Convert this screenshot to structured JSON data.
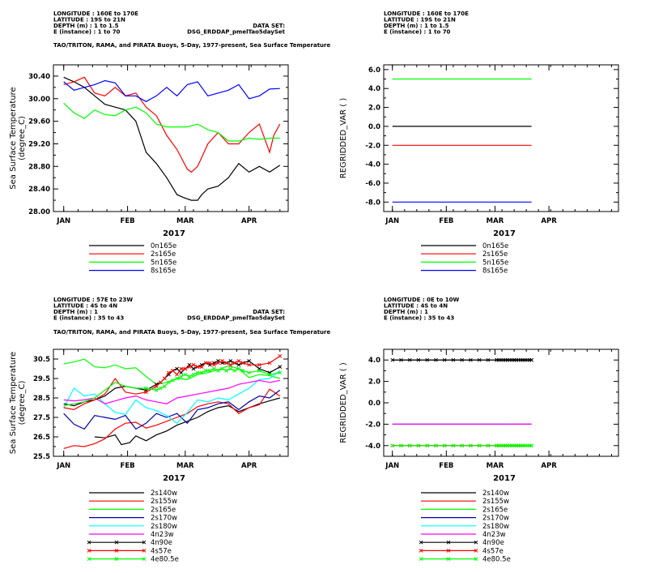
{
  "chart_data": [
    {
      "type": "line",
      "header": [
        "LONGITUDE : 160E to 170E",
        "LATITUDE : 19S to 21N",
        "DEPTH (m) : 1 to 1.5",
        "E (instance) : 1 to 70"
      ],
      "dataset_label": "DATA SET:",
      "dataset_name": "DSG_ERDDAP_pmelTao5daySet",
      "title": "TAO/TRITON, RAMA, and PIRATA Buoys, 5-Day, 1977-present, Sea Surface Temperature",
      "ylabel": "Sea Surface Temperature",
      "yunit": "(degree_C)",
      "xlabel": "2017",
      "x_ticks": [
        "JAN",
        "FEB",
        "MAR",
        "APR"
      ],
      "xlim": [
        -5,
        109
      ],
      "ylim": [
        28.0,
        30.6
      ],
      "y_ticks": [
        28.0,
        28.4,
        28.8,
        29.2,
        29.6,
        30.0,
        30.4
      ],
      "y_tick_labels": [
        "28.00",
        "28.40",
        "28.80",
        "29.20",
        "29.60",
        "30.00",
        "30.40"
      ],
      "series": [
        {
          "name": "0n165e",
          "color": "#000000",
          "x": [
            0,
            5,
            10,
            15,
            20,
            25,
            30,
            35,
            40,
            45,
            50,
            55,
            58,
            62,
            65,
            67,
            70,
            75,
            80,
            85,
            90,
            95,
            100,
            105
          ],
          "y": [
            30.38,
            30.3,
            30.2,
            30.05,
            29.9,
            29.85,
            29.8,
            29.6,
            29.05,
            28.85,
            28.6,
            28.3,
            28.25,
            28.2,
            28.2,
            28.3,
            28.4,
            28.45,
            28.6,
            28.85,
            28.7,
            28.8,
            28.7,
            28.82
          ]
        },
        {
          "name": "2s165e",
          "color": "#ff0000",
          "x": [
            0,
            5,
            10,
            15,
            20,
            25,
            30,
            35,
            40,
            45,
            50,
            55,
            60,
            62,
            65,
            70,
            75,
            80,
            85,
            90,
            95,
            100,
            102,
            105
          ],
          "y": [
            30.25,
            30.3,
            30.38,
            30.1,
            30.05,
            30.2,
            30.05,
            30.1,
            29.85,
            29.7,
            29.35,
            29.1,
            28.75,
            28.7,
            28.8,
            29.2,
            29.4,
            29.2,
            29.2,
            29.4,
            29.55,
            29.05,
            29.35,
            29.55
          ]
        },
        {
          "name": "5n165e",
          "color": "#00ff00",
          "x": [
            0,
            5,
            10,
            15,
            20,
            25,
            30,
            35,
            40,
            45,
            50,
            55,
            60,
            65,
            70,
            75,
            80,
            85,
            90,
            95,
            100,
            105
          ],
          "y": [
            29.92,
            29.75,
            29.65,
            29.8,
            29.72,
            29.7,
            29.8,
            29.85,
            29.75,
            29.55,
            29.5,
            29.5,
            29.5,
            29.55,
            29.45,
            29.4,
            29.25,
            29.25,
            29.3,
            29.28,
            29.3,
            29.3
          ]
        },
        {
          "name": "8s165e",
          "color": "#0000ff",
          "x": [
            0,
            5,
            10,
            15,
            20,
            25,
            30,
            35,
            40,
            45,
            50,
            55,
            60,
            65,
            70,
            75,
            80,
            85,
            90,
            95,
            100,
            105
          ],
          "y": [
            30.3,
            30.15,
            30.2,
            30.25,
            30.32,
            30.28,
            30.05,
            30.05,
            29.95,
            30.05,
            30.2,
            30.05,
            30.25,
            30.3,
            30.05,
            30.1,
            30.15,
            30.25,
            30.0,
            30.05,
            30.17,
            30.18
          ]
        }
      ]
    },
    {
      "type": "line",
      "header": [
        "LONGITUDE : 160E to 170E",
        "LATITUDE : 19S to 21N",
        "DEPTH (m) : 1 to 1.5",
        "E (instance) : 1 to 70"
      ],
      "ylabel": "REGRIDDED_VAR ( )",
      "xlabel": "2017",
      "x_ticks": [
        "JAN",
        "FEB",
        "MAR",
        "APR"
      ],
      "xlim": [
        -5,
        130
      ],
      "ylim": [
        -9.0,
        6.5
      ],
      "y_ticks": [
        -8,
        -6,
        -4,
        -2,
        0,
        2,
        4,
        6
      ],
      "y_tick_labels": [
        "-8.0",
        "-6.0",
        "-4.0",
        "-2.0",
        "0.0",
        "2.0",
        "4.0",
        "6.0"
      ],
      "series": [
        {
          "name": "0n165e",
          "color": "#000000",
          "x": [
            0,
            80
          ],
          "y": [
            0,
            0
          ]
        },
        {
          "name": "2s165e",
          "color": "#ff0000",
          "x": [
            0,
            80
          ],
          "y": [
            -2,
            -2
          ]
        },
        {
          "name": "5n165e",
          "color": "#00ff00",
          "x": [
            0,
            80
          ],
          "y": [
            5,
            5
          ]
        },
        {
          "name": "8s165e",
          "color": "#0000ff",
          "x": [
            0,
            80
          ],
          "y": [
            -8,
            -8
          ]
        }
      ]
    },
    {
      "type": "line",
      "header": [
        "LONGITUDE : 57E to 23W",
        "LATITUDE : 4S to 4N",
        "DEPTH (m) : 1",
        "E (instance) : 35 to 43"
      ],
      "dataset_label": "DATA SET:",
      "dataset_name": "DSG_ERDDAP_pmelTao5daySet",
      "title": "TAO/TRITON, RAMA, and PIRATA Buoys, 5-Day, 1977-present, Sea Surface Temperature",
      "ylabel": "Sea Surface Temperature",
      "yunit": "(degree_C)",
      "xlabel": "2017",
      "x_ticks": [
        "JAN",
        "FEB",
        "MAR",
        "APR"
      ],
      "xlim": [
        -5,
        109
      ],
      "ylim": [
        25.5,
        31.0
      ],
      "y_ticks": [
        25.5,
        26.5,
        27.5,
        28.5,
        29.5,
        30.5
      ],
      "y_tick_labels": [
        "25.5",
        "26.5",
        "27.5",
        "28.5",
        "29.5",
        "30.5"
      ],
      "series": [
        {
          "name": "2s140w",
          "color": "#000000",
          "x": [
            15,
            20,
            25,
            28,
            32,
            35,
            40,
            45,
            50,
            55,
            60,
            65,
            70,
            75,
            80,
            85,
            90,
            95,
            100,
            105
          ],
          "y": [
            26.5,
            26.45,
            26.6,
            26.1,
            26.2,
            26.55,
            26.3,
            26.6,
            26.8,
            27.1,
            27.3,
            27.5,
            27.8,
            28.0,
            28.1,
            27.8,
            28.0,
            28.2,
            28.35,
            28.5
          ]
        },
        {
          "name": "2s155w",
          "color": "#ff0000",
          "x": [
            0,
            5,
            10,
            15,
            20,
            25,
            30,
            35,
            40,
            45,
            50,
            55,
            60,
            65,
            70,
            75,
            80,
            85,
            90,
            95,
            100,
            105
          ],
          "y": [
            25.9,
            26.05,
            26.0,
            26.15,
            26.4,
            26.9,
            27.2,
            27.25,
            26.95,
            27.1,
            27.3,
            27.5,
            27.7,
            28.05,
            28.2,
            28.3,
            28.2,
            27.7,
            28.0,
            28.15,
            28.95,
            28.6
          ]
        },
        {
          "name": "2s165e",
          "color": "#00ff00",
          "x": [
            0,
            5,
            10,
            15,
            20,
            25,
            30,
            35,
            40,
            45,
            50,
            55,
            60,
            65,
            70,
            75,
            80,
            85,
            90,
            95,
            100,
            105
          ],
          "y": [
            30.25,
            30.35,
            30.5,
            30.1,
            30.05,
            30.2,
            30.0,
            30.05,
            29.6,
            29.2,
            29.3,
            29.5,
            29.45,
            29.7,
            29.8,
            29.95,
            30.15,
            30.0,
            29.55,
            29.7,
            29.65,
            29.5
          ]
        },
        {
          "name": "2s170w",
          "color": "#0000aa",
          "x": [
            0,
            5,
            10,
            15,
            20,
            25,
            30,
            35,
            40,
            45,
            50,
            55,
            60,
            65,
            70,
            75,
            80,
            85,
            90,
            95,
            100,
            105
          ],
          "y": [
            27.7,
            27.15,
            26.9,
            27.6,
            27.5,
            27.4,
            27.6,
            26.9,
            27.2,
            27.7,
            27.5,
            27.7,
            27.2,
            27.9,
            28.0,
            28.2,
            28.3,
            27.9,
            28.3,
            28.6,
            28.5,
            28.9
          ]
        },
        {
          "name": "2s180w",
          "color": "#00ffff",
          "x": [
            0,
            5,
            10,
            15,
            20,
            25,
            30,
            35,
            40,
            45,
            50,
            55,
            60,
            65,
            70,
            75,
            80,
            85,
            90,
            95,
            100,
            105
          ],
          "y": [
            28.0,
            29.0,
            28.6,
            28.7,
            28.2,
            27.75,
            27.65,
            28.4,
            28.0,
            27.85,
            27.6,
            27.2,
            27.75,
            28.4,
            28.3,
            28.5,
            28.4,
            28.7,
            29.0,
            29.45,
            29.5,
            29.9
          ]
        },
        {
          "name": "4n23w",
          "color": "#ff00ff",
          "x": [
            0,
            5,
            10,
            15,
            20,
            25,
            30,
            35,
            40,
            45,
            50,
            55,
            60,
            65,
            70,
            75,
            80,
            85,
            90,
            95,
            100,
            105
          ],
          "y": [
            28.4,
            28.35,
            28.4,
            28.5,
            28.2,
            28.35,
            28.5,
            28.6,
            28.4,
            28.3,
            28.2,
            28.5,
            28.6,
            28.7,
            28.8,
            28.9,
            29.0,
            29.2,
            29.3,
            29.4,
            29.3,
            29.4
          ]
        },
        {
          "name": "4n90e",
          "color": "#000000",
          "marker": "x",
          "x": [
            0,
            5,
            10,
            15,
            20,
            25,
            30,
            35,
            40,
            45,
            47,
            49,
            51,
            53,
            55,
            57,
            59,
            61,
            63,
            65,
            67,
            69,
            71,
            73,
            75,
            77,
            79,
            81,
            83,
            85,
            87,
            90,
            95,
            100,
            105
          ],
          "y": [
            28.2,
            28.1,
            28.3,
            28.4,
            28.6,
            29.0,
            29.1,
            29.0,
            28.9,
            29.2,
            29.3,
            29.5,
            29.7,
            29.9,
            30.0,
            29.8,
            30.0,
            30.2,
            30.0,
            30.1,
            30.2,
            30.3,
            30.2,
            30.3,
            30.4,
            30.3,
            30.3,
            30.4,
            30.3,
            30.2,
            30.3,
            30.4,
            30.0,
            29.8,
            30.1
          ]
        },
        {
          "name": "4s57e",
          "color": "#ff0000",
          "marker": "x",
          "x": [
            0,
            5,
            10,
            15,
            20,
            25,
            30,
            35,
            40,
            45,
            47,
            49,
            51,
            53,
            55,
            57,
            59,
            61,
            63,
            65,
            67,
            69,
            71,
            73,
            75,
            77,
            79,
            81,
            83,
            85,
            87,
            90,
            95,
            100,
            105
          ],
          "y": [
            28.0,
            27.9,
            28.2,
            28.4,
            28.7,
            29.5,
            28.8,
            28.7,
            28.8,
            29.1,
            29.3,
            29.5,
            29.8,
            29.9,
            29.7,
            30.0,
            30.0,
            30.1,
            30.2,
            30.1,
            30.1,
            30.3,
            30.3,
            30.2,
            30.3,
            30.4,
            30.3,
            30.2,
            30.3,
            30.4,
            30.3,
            30.2,
            30.2,
            30.3,
            30.65
          ]
        },
        {
          "name": "4e80.5e",
          "color": "#00ff00",
          "marker": "x",
          "x": [
            0,
            5,
            10,
            15,
            20,
            25,
            30,
            35,
            40,
            45,
            47,
            49,
            51,
            53,
            55,
            57,
            59,
            61,
            63,
            65,
            67,
            69,
            71,
            73,
            75,
            77,
            79,
            81,
            83,
            85,
            87,
            90,
            95,
            100,
            105
          ],
          "y": [
            28.1,
            28.2,
            28.3,
            28.5,
            28.9,
            29.3,
            29.1,
            29.0,
            29.0,
            28.9,
            29.0,
            29.1,
            29.3,
            29.4,
            29.5,
            29.6,
            29.7,
            29.6,
            29.7,
            29.8,
            29.8,
            29.9,
            29.9,
            30.0,
            29.9,
            30.0,
            29.9,
            30.0,
            29.9,
            30.0,
            29.9,
            29.8,
            29.9,
            29.7,
            29.8
          ]
        }
      ]
    },
    {
      "type": "line",
      "header": [
        "LONGITUDE : 0E to 10W",
        "LATITUDE : 4S to 4N",
        "DEPTH (m) : 1",
        "E (instance) : 35 to 43"
      ],
      "ylabel": "REGRIDDED_VAR ( )",
      "xlabel": "2017",
      "x_ticks": [
        "JAN",
        "FEB",
        "MAR",
        "APR"
      ],
      "xlim": [
        -5,
        130
      ],
      "ylim": [
        -5.0,
        5.0
      ],
      "y_ticks": [
        -4,
        -2,
        0,
        2,
        4
      ],
      "y_tick_labels": [
        "-4.0",
        "-2.0",
        "0.0",
        "2.0",
        "4.0"
      ],
      "series": [
        {
          "name": "2s140w",
          "color": "#000000",
          "x": [
            0,
            80
          ],
          "y": [
            4,
            4
          ]
        },
        {
          "name": "2s155w",
          "color": "#ff0000",
          "x": [
            0,
            80
          ],
          "y": [
            -4,
            -4
          ]
        },
        {
          "name": "2s165e",
          "color": "#00ff00",
          "x": [
            0,
            80
          ],
          "y": [
            -4,
            -4
          ]
        },
        {
          "name": "2s170w",
          "color": "#0000aa",
          "x": [
            0,
            80
          ],
          "y": [
            -2,
            -2
          ]
        },
        {
          "name": "2s180w",
          "color": "#00ffff",
          "x": [
            0,
            67
          ],
          "y": [
            -2,
            -2
          ]
        },
        {
          "name": "4n23w",
          "color": "#ff00ff",
          "x": [
            0,
            80
          ],
          "y": [
            -2,
            -2
          ]
        },
        {
          "name": "4n90e",
          "color": "#000000",
          "marker": "x",
          "x": [
            0,
            80
          ],
          "y": [
            4,
            4
          ]
        },
        {
          "name": "4s57e",
          "color": "#ff0000",
          "marker": "x",
          "x": [
            0,
            75
          ],
          "y": [
            -4,
            -4
          ]
        },
        {
          "name": "4e80.5e",
          "color": "#00ff00",
          "marker": "x",
          "x": [
            0,
            80
          ],
          "y": [
            -4,
            -4
          ]
        }
      ]
    }
  ]
}
